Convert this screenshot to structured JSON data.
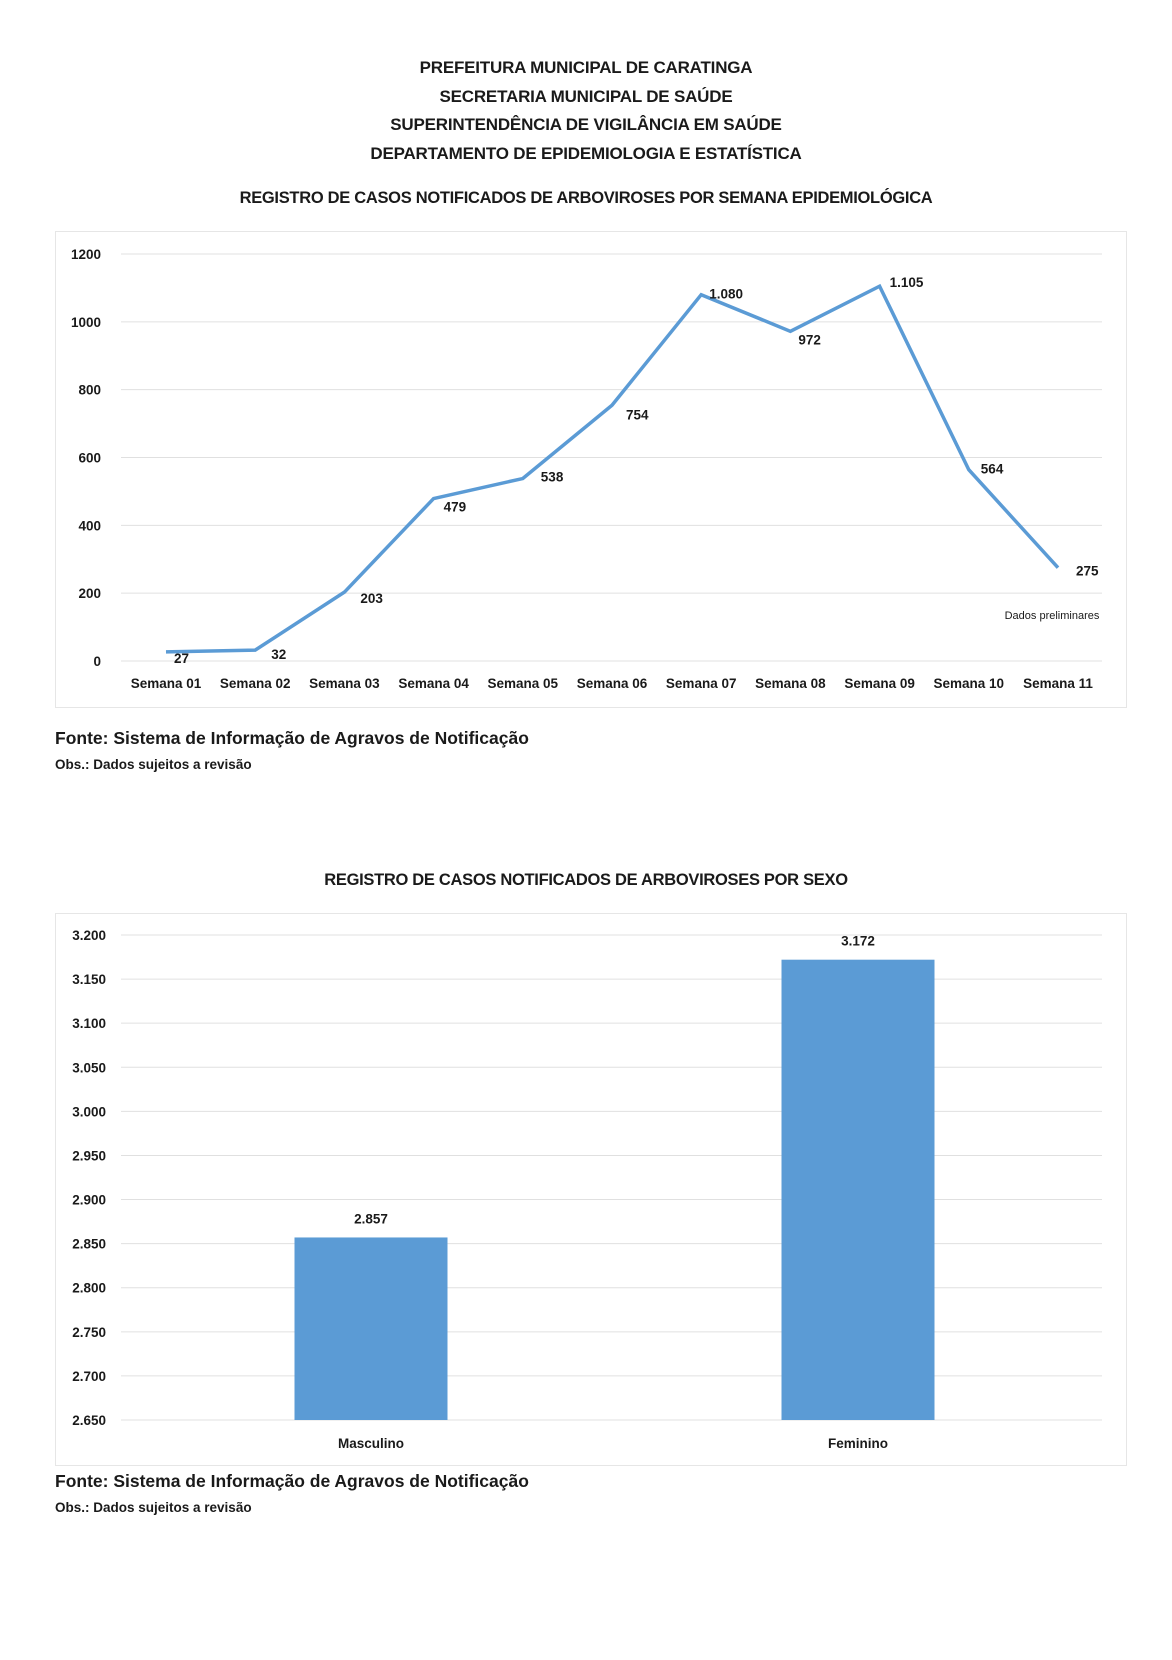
{
  "header": {
    "lines": [
      "PREFEITURA MUNICIPAL DE CARATINGA",
      "SECRETARIA MUNICIPAL DE SAÚDE",
      "SUPERINTENDÊNCIA DE VIGILÂNCIA EM SAÚDE",
      "DEPARTAMENTO DE EPIDEMIOLOGIA E ESTATÍSTICA"
    ]
  },
  "chart_data": [
    {
      "type": "line",
      "title": "REGISTRO DE CASOS NOTIFICADOS DE ARBOVIROSES POR SEMANA EPIDEMIOLÓGICA",
      "categories": [
        "Semana 01",
        "Semana 02",
        "Semana 03",
        "Semana 04",
        "Semana 05",
        "Semana 06",
        "Semana 07",
        "Semana 08",
        "Semana 09",
        "Semana 10",
        "Semana 11"
      ],
      "values": [
        27,
        32,
        203,
        479,
        538,
        754,
        1080,
        972,
        1105,
        564,
        275
      ],
      "data_labels": [
        "27",
        "32",
        "203",
        "479",
        "538",
        "754",
        "1.080",
        "972",
        "1.105",
        "564",
        "275"
      ],
      "ylim": [
        0,
        1200
      ],
      "yticks": [
        0,
        200,
        400,
        600,
        800,
        1000,
        1200
      ],
      "ytick_labels": [
        "0",
        "200",
        "400",
        "600",
        "800",
        "1000",
        "1200"
      ],
      "annotation": "Dados preliminares",
      "grid": true,
      "color": "#5b9bd5",
      "xlabel": "",
      "ylabel": ""
    },
    {
      "type": "bar",
      "title": "REGISTRO DE CASOS NOTIFICADOS DE ARBOVIROSES POR SEXO",
      "categories": [
        "Masculino",
        "Feminino"
      ],
      "values": [
        2857,
        3172
      ],
      "data_labels": [
        "2.857",
        "3.172"
      ],
      "ylim": [
        2650,
        3200
      ],
      "yticks": [
        2650,
        2700,
        2750,
        2800,
        2850,
        2900,
        2950,
        3000,
        3050,
        3100,
        3150,
        3200
      ],
      "ytick_labels": [
        "2.650",
        "2.700",
        "2.750",
        "2.800",
        "2.850",
        "2.900",
        "2.950",
        "3.000",
        "3.050",
        "3.100",
        "3.150",
        "3.200"
      ],
      "grid": true,
      "color": "#5b9bd5",
      "xlabel": "",
      "ylabel": ""
    }
  ],
  "footnotes": [
    {
      "fonte": "Fonte: Sistema de Informação de Agravos de Notificação",
      "obs": "Obs.: Dados sujeitos a revisão"
    },
    {
      "fonte": "Fonte: Sistema de Informação de Agravos de Notificação",
      "obs": "Obs.: Dados sujeitos a revisão"
    }
  ]
}
